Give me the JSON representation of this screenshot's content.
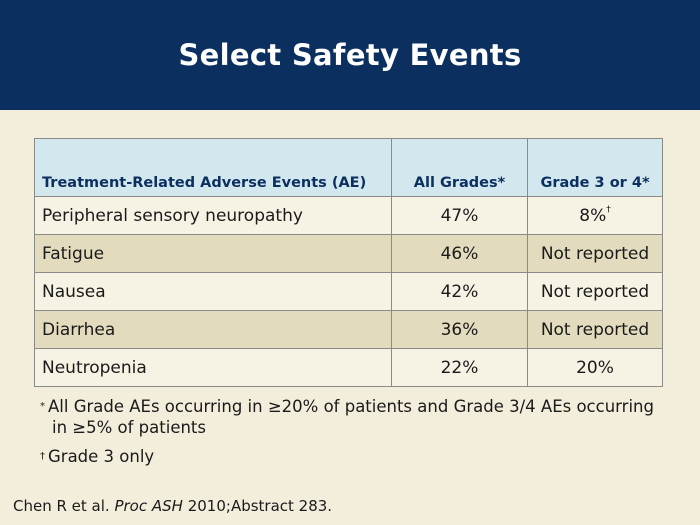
{
  "title": "Select Safety Events",
  "table": {
    "headers": [
      "Treatment-Related Adverse Events (AE)",
      "All Grades*",
      "Grade 3 or 4*"
    ],
    "rows": [
      {
        "event": "Peripheral sensory neuropathy",
        "all_grades": "47%",
        "grade34": "8%",
        "grade34_mark": "†"
      },
      {
        "event": "Fatigue",
        "all_grades": "46%",
        "grade34": "Not reported",
        "grade34_mark": ""
      },
      {
        "event": "Nausea",
        "all_grades": "42%",
        "grade34": "Not reported",
        "grade34_mark": ""
      },
      {
        "event": "Diarrhea",
        "all_grades": "36%",
        "grade34": "Not reported",
        "grade34_mark": ""
      },
      {
        "event": "Neutropenia",
        "all_grades": "22%",
        "grade34": "20%",
        "grade34_mark": ""
      }
    ]
  },
  "footnotes": [
    {
      "mark": "*",
      "text": "All Grade AEs occurring in ≥20% of patients and Grade 3/4 AEs occurring in ≥5% of patients"
    },
    {
      "mark": "†",
      "text": "Grade 3 only"
    }
  ],
  "citation": {
    "authors": "Chen R et al.",
    "journal": "Proc ASH",
    "rest": "2010;Abstract 283."
  }
}
